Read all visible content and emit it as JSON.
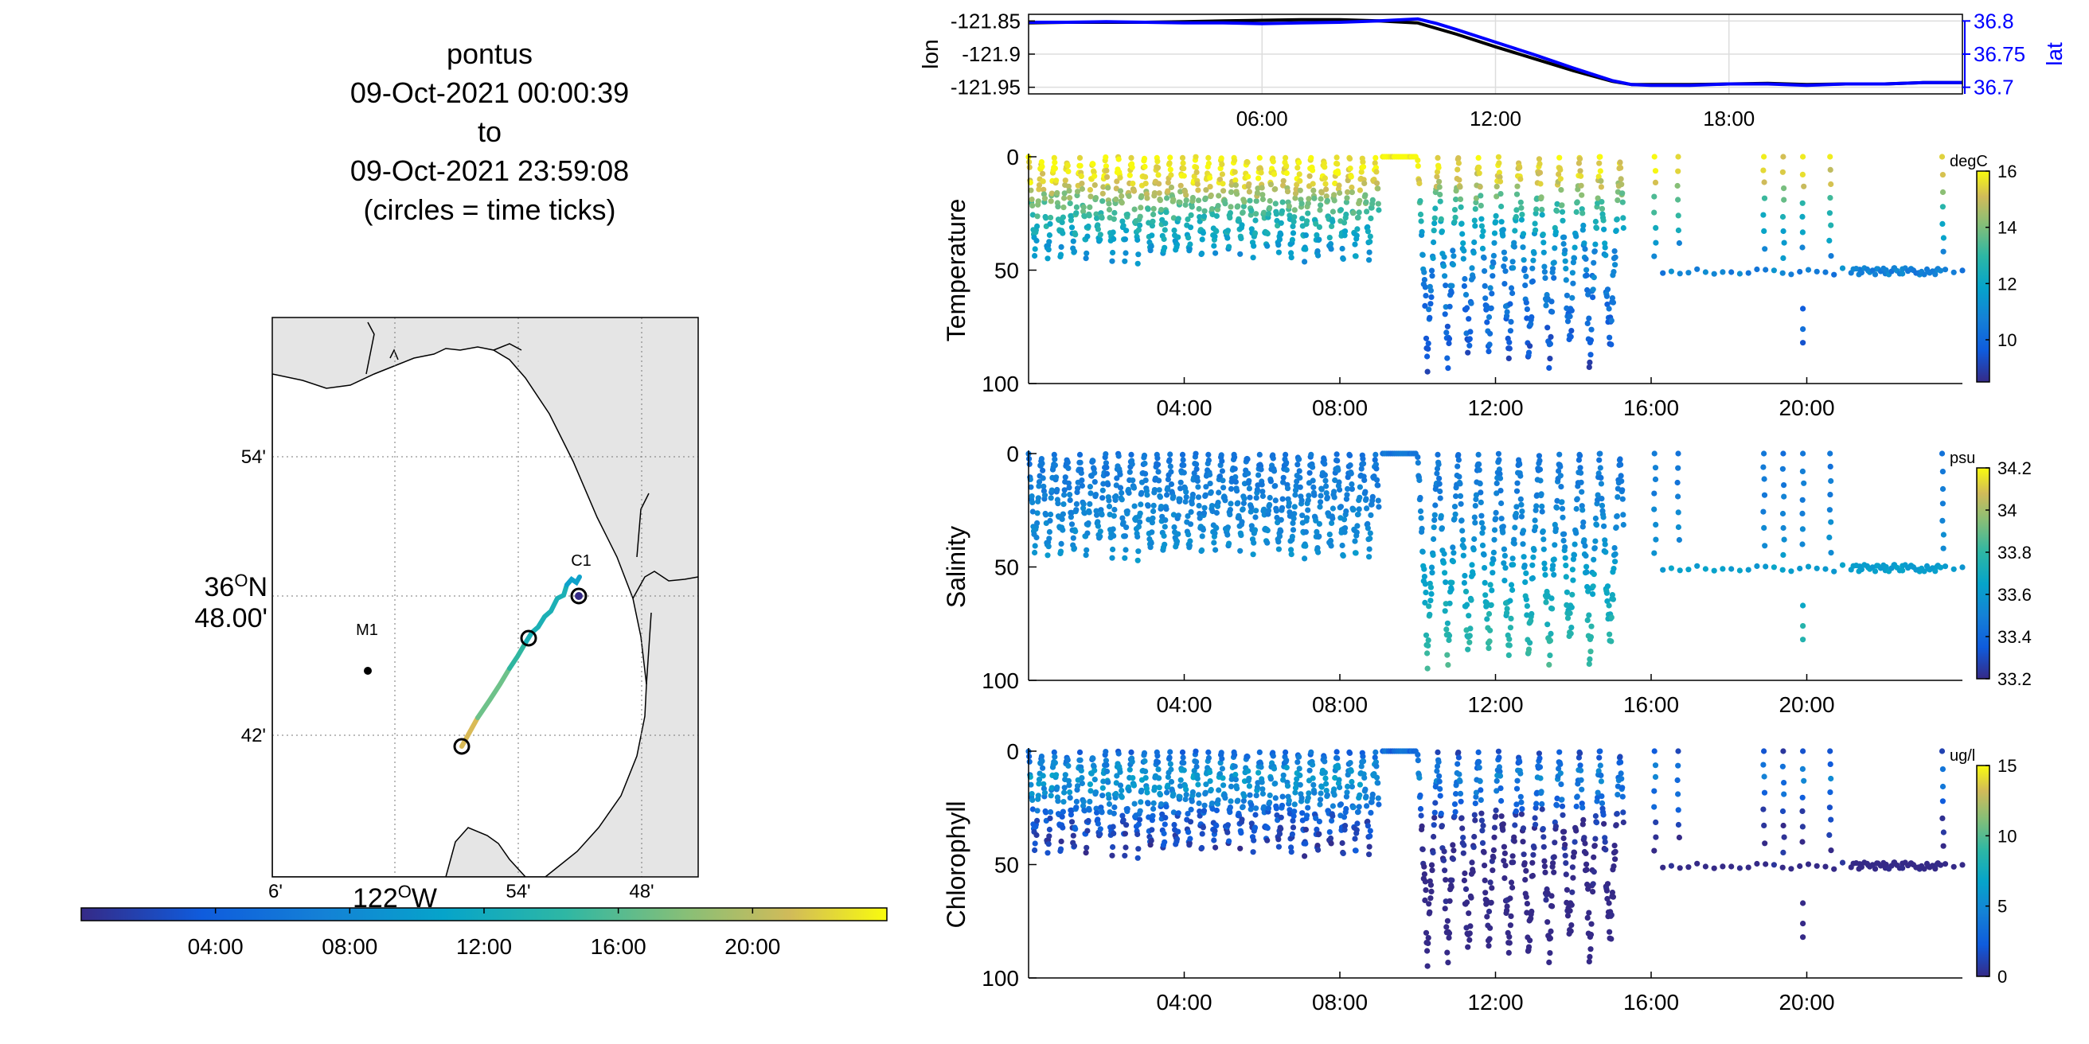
{
  "title": {
    "lines": [
      "pontus",
      "09-Oct-2021 00:00:39",
      "to",
      "09-Oct-2021 23:59:08",
      "(circles = time ticks)"
    ]
  },
  "map": {
    "lat_ticks": [
      "54'",
      "36ON 48.00'",
      "42'"
    ],
    "lat_center_line1": "36",
    "lat_center_deg": "O",
    "lat_center_hemi": "N",
    "lat_center_line2": "48.00'",
    "lon_ticks": [
      "6'",
      "54'",
      "48'"
    ],
    "lon_center_deg_prefix": "122",
    "lon_center_deg": "O",
    "lon_center_hemi": "W",
    "stations": [
      {
        "name": "M1"
      },
      {
        "name": "C1"
      }
    ],
    "colors": {
      "land": "#e5e5e5",
      "water": "#ffffff",
      "coast": "#000000",
      "grid": "#888888"
    }
  },
  "time_colorbar": {
    "ticks": [
      "04:00",
      "08:00",
      "12:00",
      "16:00",
      "20:00"
    ],
    "hours": [
      4,
      8,
      12,
      16,
      20
    ]
  },
  "panels": {
    "lonlat": {
      "ylabel_left": "lon",
      "ylabel_right": "lat",
      "yticks_left": [
        "-121.85",
        "-121.9",
        "-121.95"
      ],
      "yticks_right": [
        "36.8",
        "36.75",
        "36.7"
      ],
      "xticks": [
        "06:00",
        "12:00",
        "18:00"
      ]
    },
    "temperature": {
      "ylabel": "Temperature",
      "unit": "degC",
      "yticks": [
        "0",
        "50",
        "100"
      ],
      "cbar_ticks": [
        "16",
        "14",
        "12",
        "10"
      ],
      "xticks": [
        "04:00",
        "08:00",
        "12:00",
        "16:00",
        "20:00"
      ]
    },
    "salinity": {
      "ylabel": "Salinity",
      "unit": "psu",
      "yticks": [
        "0",
        "50",
        "100"
      ],
      "cbar_ticks": [
        "34.2",
        "34",
        "33.8",
        "33.6",
        "33.4",
        "33.2"
      ],
      "xticks": [
        "04:00",
        "08:00",
        "12:00",
        "16:00",
        "20:00"
      ]
    },
    "chlorophyll": {
      "ylabel": "Chlorophyll",
      "unit": "ug/l",
      "yticks": [
        "0",
        "50",
        "100"
      ],
      "cbar_ticks": [
        "15",
        "10",
        "5",
        "0"
      ],
      "xticks": [
        "04:00",
        "08:00",
        "12:00",
        "16:00",
        "20:00"
      ]
    }
  },
  "chart_data": [
    {
      "type": "line",
      "ylabel": "lon",
      "y2label": "lat",
      "xlim": [
        0,
        24
      ],
      "ylim": [
        -121.96,
        -121.84
      ],
      "y2lim": [
        36.69,
        36.81
      ],
      "series": [
        {
          "axis": "left",
          "color": "#000000",
          "x": [
            0,
            1,
            2,
            3,
            4,
            5,
            6,
            7,
            8,
            9,
            10,
            11,
            12,
            13,
            14,
            15,
            15.5,
            16,
            17,
            18,
            19,
            20,
            21,
            22,
            23,
            24
          ],
          "y": [
            -121.853,
            -121.852,
            -121.852,
            -121.852,
            -121.851,
            -121.85,
            -121.849,
            -121.848,
            -121.848,
            -121.85,
            -121.853,
            -121.87,
            -121.889,
            -121.907,
            -121.925,
            -121.941,
            -121.946,
            -121.946,
            -121.946,
            -121.945,
            -121.944,
            -121.946,
            -121.945,
            -121.945,
            -121.943,
            -121.943
          ]
        },
        {
          "axis": "right",
          "color": "#0000ff",
          "x": [
            0,
            1,
            2,
            3,
            4,
            5,
            6,
            7,
            8,
            9,
            10,
            10.5,
            11,
            12,
            13,
            14,
            15,
            15.5,
            16,
            17,
            18,
            19,
            20,
            21,
            22,
            23,
            24
          ],
          "y": [
            36.798,
            36.798,
            36.799,
            36.798,
            36.797,
            36.797,
            36.796,
            36.797,
            36.798,
            36.8,
            36.803,
            36.796,
            36.787,
            36.768,
            36.749,
            36.729,
            36.71,
            36.704,
            36.703,
            36.703,
            36.705,
            36.705,
            36.703,
            36.705,
            36.705,
            36.707,
            36.707
          ]
        }
      ]
    },
    {
      "type": "scatter",
      "title": "",
      "ylabel": "Temperature",
      "unit": "degC",
      "xlim": [
        0,
        24
      ],
      "ylim": [
        0,
        100
      ],
      "y_reversed": true,
      "clim": [
        8.5,
        16.0
      ],
      "segments": [
        {
          "t": [
            0.0,
            9.0
          ],
          "yo_period": 0.35,
          "max_depth": 50,
          "gap": [
            9.0,
            10.0
          ]
        },
        {
          "t": [
            10.0,
            15.3
          ],
          "yo_period": 0.5,
          "max_depth": 98
        },
        {
          "t": [
            16.0,
            24.0
          ],
          "sparse": true,
          "max_depth": 52
        }
      ],
      "profile": [
        [
          0,
          16.0
        ],
        [
          10,
          15.6
        ],
        [
          20,
          13.8
        ],
        [
          30,
          12.5
        ],
        [
          40,
          11.6
        ],
        [
          50,
          11.2
        ],
        [
          60,
          10.8
        ],
        [
          80,
          10.2
        ],
        [
          100,
          9.6
        ]
      ]
    },
    {
      "type": "scatter",
      "title": "",
      "ylabel": "Salinity",
      "unit": "psu",
      "xlim": [
        0,
        24
      ],
      "ylim": [
        0,
        100
      ],
      "y_reversed": true,
      "clim": [
        33.2,
        34.2
      ],
      "profile": [
        [
          0,
          33.45
        ],
        [
          20,
          33.5
        ],
        [
          40,
          33.55
        ],
        [
          50,
          33.62
        ],
        [
          70,
          33.72
        ],
        [
          90,
          33.82
        ],
        [
          100,
          33.9
        ]
      ]
    },
    {
      "type": "scatter",
      "title": "",
      "ylabel": "Chlorophyll",
      "unit": "ug/l",
      "xlim": [
        0,
        24
      ],
      "ylim": [
        0,
        100
      ],
      "y_reversed": true,
      "clim": [
        0,
        15
      ],
      "profile": [
        [
          0,
          3.0
        ],
        [
          10,
          6.0
        ],
        [
          20,
          5.0
        ],
        [
          30,
          2.0
        ],
        [
          50,
          0.8
        ],
        [
          100,
          0.2
        ]
      ]
    }
  ]
}
